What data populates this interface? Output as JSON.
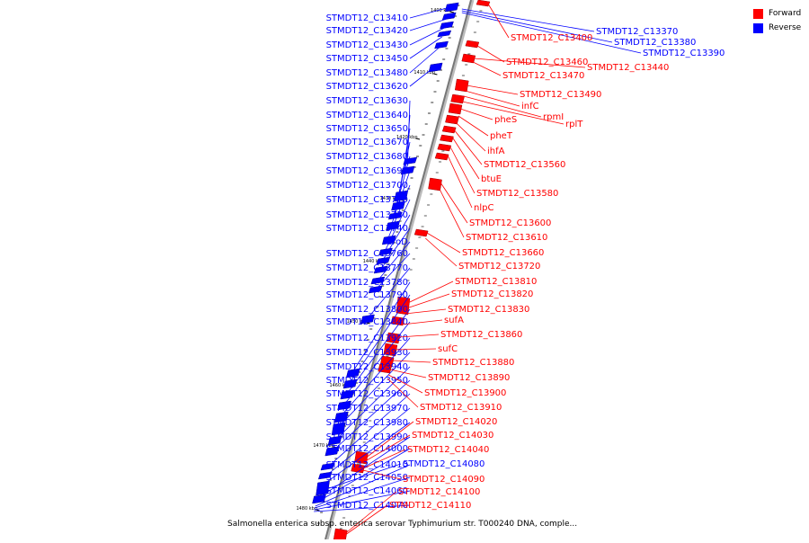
{
  "legend": {
    "forward_label": "Forward",
    "reverse_label": "Reverse",
    "forward_color": "#ff0000",
    "reverse_color": "#0000ff"
  },
  "caption": "Salmonella enterica subsp. enterica serovar Typhimurium str. T000240 DNA, comple...",
  "ticks": [
    "1400 kbp",
    "1410 kbp",
    "1420 kbp",
    "1430 kbp",
    "1440 kbp",
    "1450 kbp",
    "1460 kbp",
    "1470 kbp",
    "1480 kbp"
  ],
  "reverse_genes": [
    "STMDT12_C13410",
    "STMDT12_C13420",
    "STMDT12_C13430",
    "STMDT12_C13450",
    "STMDT12_C13480",
    "STMDT12_C13620",
    "STMDT12_C13630",
    "STMDT12_C13640",
    "STMDT12_C13650",
    "STMDT12_C13670",
    "STMDT12_C13680",
    "STMDT12_C13690",
    "STMDT12_C13700",
    "STMDT12_C13710",
    "STMDT12_C13730",
    "STMDT12_C13740",
    "aroD",
    "STMDT12_C13760",
    "STMDT12_C13770",
    "STMDT12_C13780",
    "STMDT12_C13790",
    "STMDT12_C13800",
    "STMDT12_C13840",
    "STMDT12_C13920",
    "STMDT12_C13930",
    "STMDT12_C13940",
    "STMDT12_C13950",
    "STMDT12_C13960",
    "STMDT12_C13970",
    "STMDT12_C13980",
    "STMDT12_C13990",
    "STMDT12_C14000",
    "STMDT12_C14010",
    "STMDT12_C14050",
    "STMDT12_C14060",
    "STMDT12_C14070",
    "STMDT12_C14080"
  ],
  "reverse_right_genes": [
    "STMDT12_C13370",
    "STMDT12_C13380",
    "STMDT12_C13390"
  ],
  "forward_genes": [
    "STMDT12_C13400",
    "STMDT12_C13460",
    "STMDT12_C13440",
    "STMDT12_C13470",
    "STMDT12_C13490",
    "infC",
    "rpmI",
    "rplT",
    "pheS",
    "pheT",
    "ihfA",
    "STMDT12_C13560",
    "btuE",
    "STMDT12_C13580",
    "nlpC",
    "STMDT12_C13600",
    "STMDT12_C13610",
    "STMDT12_C13660",
    "STMDT12_C13720",
    "STMDT12_C13810",
    "STMDT12_C13820",
    "STMDT12_C13830",
    "sufA",
    "STMDT12_C13860",
    "sufC",
    "STMDT12_C13880",
    "STMDT12_C13890",
    "STMDT12_C13900",
    "STMDT12_C13910",
    "STMDT12_C14020",
    "STMDT12_C14030",
    "STMDT12_C14040",
    "STMDT12_C14090",
    "STMDT12_C14100",
    "STMDT12_C14110"
  ]
}
